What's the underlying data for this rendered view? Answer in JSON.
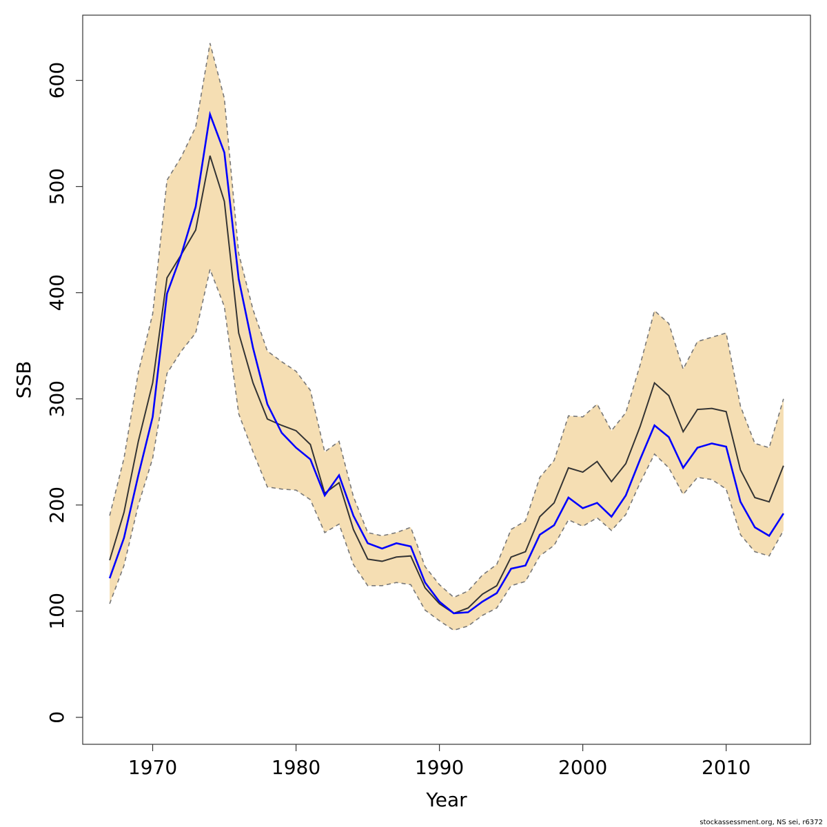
{
  "chart_data": {
    "type": "line",
    "xlabel": "Year",
    "ylabel": "SSB",
    "footnote": "stockassessment.org, NS sei, r6372",
    "x": [
      1967,
      1968,
      1969,
      1970,
      1971,
      1972,
      1973,
      1974,
      1975,
      1976,
      1977,
      1978,
      1979,
      1980,
      1981,
      1982,
      1983,
      1984,
      1985,
      1986,
      1987,
      1988,
      1989,
      1990,
      1991,
      1992,
      1993,
      1994,
      1995,
      1996,
      1997,
      1998,
      1999,
      2000,
      2001,
      2002,
      2003,
      2004,
      2005,
      2006,
      2007,
      2008,
      2009,
      2010,
      2011,
      2012,
      2013,
      2014
    ],
    "band_color": "#f5deb3",
    "band_line_color": "#777777",
    "upper": [
      190,
      244,
      325,
      380,
      506,
      528,
      556,
      635,
      583,
      437,
      384,
      345,
      335,
      326,
      308,
      250,
      260,
      208,
      174,
      171,
      174,
      179,
      142,
      125,
      113,
      119,
      134,
      144,
      177,
      185,
      226,
      242,
      284,
      283,
      295,
      270,
      287,
      332,
      383,
      371,
      328,
      354,
      358,
      362,
      293,
      258,
      254,
      300
    ],
    "lower": [
      107,
      143,
      200,
      244,
      324,
      345,
      362,
      422,
      387,
      286,
      250,
      217,
      215,
      214,
      205,
      174,
      182,
      144,
      124,
      124,
      127,
      125,
      101,
      91,
      82,
      86,
      96,
      103,
      124,
      128,
      152,
      162,
      186,
      180,
      188,
      176,
      191,
      221,
      248,
      235,
      210,
      226,
      224,
      215,
      172,
      156,
      152,
      176
    ],
    "series": [
      {
        "color": "#333333",
        "values": [
          148,
          193,
          260,
          315,
          414,
          436,
          459,
          529,
          486,
          362,
          315,
          281,
          275,
          270,
          257,
          211,
          221,
          177,
          149,
          147,
          151,
          152,
          122,
          107,
          98,
          103,
          116,
          124,
          151,
          156,
          189,
          202,
          235,
          231,
          241,
          222,
          239,
          274,
          315,
          303,
          269,
          290,
          291,
          288,
          233,
          207,
          203,
          237
        ]
      },
      {
        "color": "#0000ff",
        "values": [
          131,
          169,
          228,
          283,
          399,
          436,
          481,
          568,
          532,
          413,
          348,
          295,
          268,
          254,
          243,
          209,
          228,
          190,
          164,
          159,
          164,
          161,
          127,
          109,
          98,
          99,
          109,
          117,
          140,
          143,
          172,
          181,
          207,
          197,
          202,
          189,
          209,
          243,
          275,
          264,
          235,
          254,
          258,
          255,
          203,
          179,
          171,
          192
        ]
      }
    ],
    "xlim": [
      1965.12,
      2015.88
    ],
    "ylim": [
      -25.4,
      661.4
    ],
    "xticks": [
      1970,
      1980,
      1990,
      2000,
      2010
    ],
    "yticks": [
      0,
      100,
      200,
      300,
      400,
      500,
      600
    ]
  }
}
